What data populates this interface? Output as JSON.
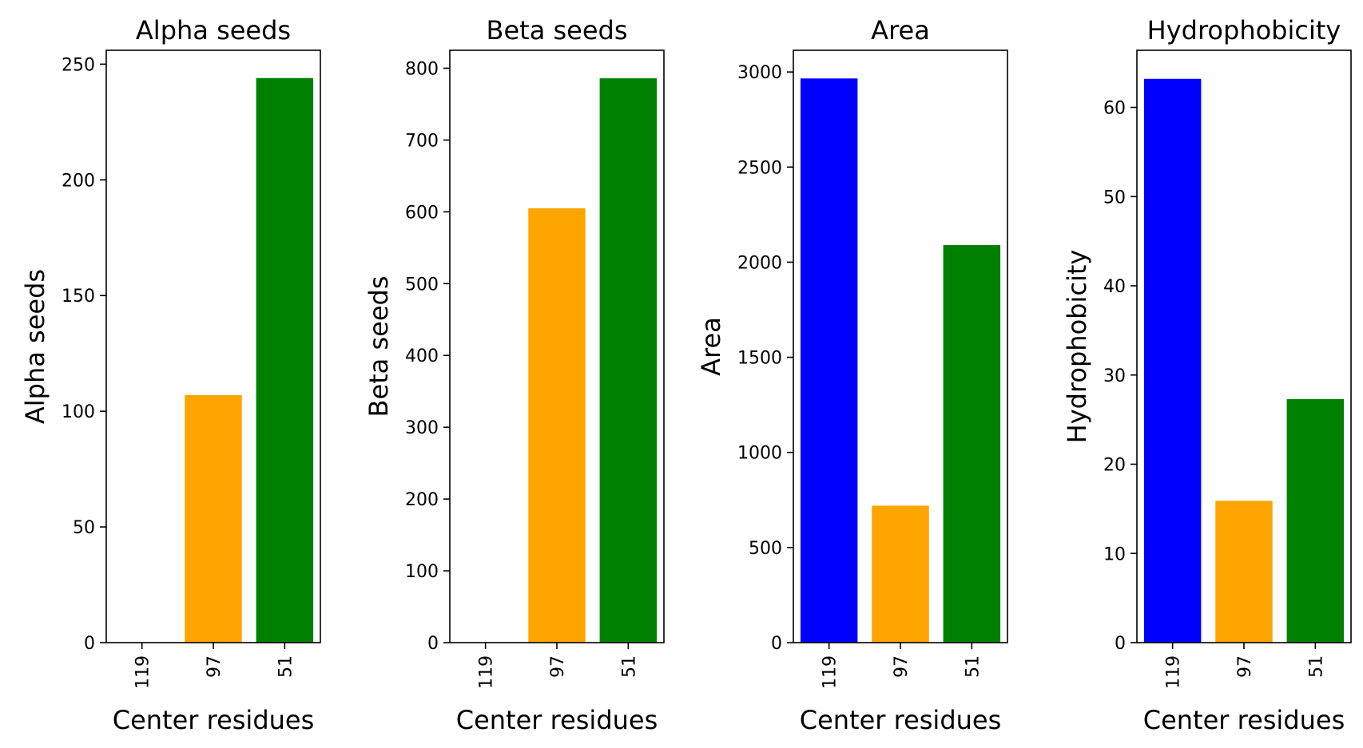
{
  "chart_data": [
    {
      "type": "bar",
      "title": "Alpha seeds",
      "xlabel": "Center residues",
      "ylabel": "Alpha seeds",
      "categories": [
        "119",
        "97",
        "51"
      ],
      "values": [
        0,
        107,
        244
      ],
      "colors": [
        "#0000ff",
        "#ffa500",
        "#008000"
      ],
      "ylim": [
        0,
        256
      ],
      "yticks": [
        0,
        50,
        100,
        150,
        200,
        250
      ],
      "grid": false
    },
    {
      "type": "bar",
      "title": "Beta seeds",
      "xlabel": "Center residues",
      "ylabel": "Beta seeds",
      "categories": [
        "119",
        "97",
        "51"
      ],
      "values": [
        0,
        605,
        786
      ],
      "colors": [
        "#0000ff",
        "#ffa500",
        "#008000"
      ],
      "ylim": [
        0,
        825
      ],
      "yticks": [
        0,
        100,
        200,
        300,
        400,
        500,
        600,
        700,
        800
      ],
      "grid": false
    },
    {
      "type": "bar",
      "title": "Area",
      "xlabel": "Center residues",
      "ylabel": "Area",
      "categories": [
        "119",
        "97",
        "51"
      ],
      "values": [
        2966,
        720,
        2090
      ],
      "colors": [
        "#0000ff",
        "#ffa500",
        "#008000"
      ],
      "ylim": [
        0,
        3114
      ],
      "yticks": [
        0,
        500,
        1000,
        1500,
        2000,
        2500,
        3000
      ],
      "grid": false
    },
    {
      "type": "bar",
      "title": "Hydrophobicity",
      "xlabel": "Center residues",
      "ylabel": "Hydrophobicity",
      "categories": [
        "119",
        "97",
        "51"
      ],
      "values": [
        63.2,
        15.9,
        27.3
      ],
      "colors": [
        "#0000ff",
        "#ffa500",
        "#008000"
      ],
      "ylim": [
        0,
        66.4
      ],
      "yticks": [
        0,
        10,
        20,
        30,
        40,
        50,
        60
      ],
      "grid": false
    }
  ]
}
